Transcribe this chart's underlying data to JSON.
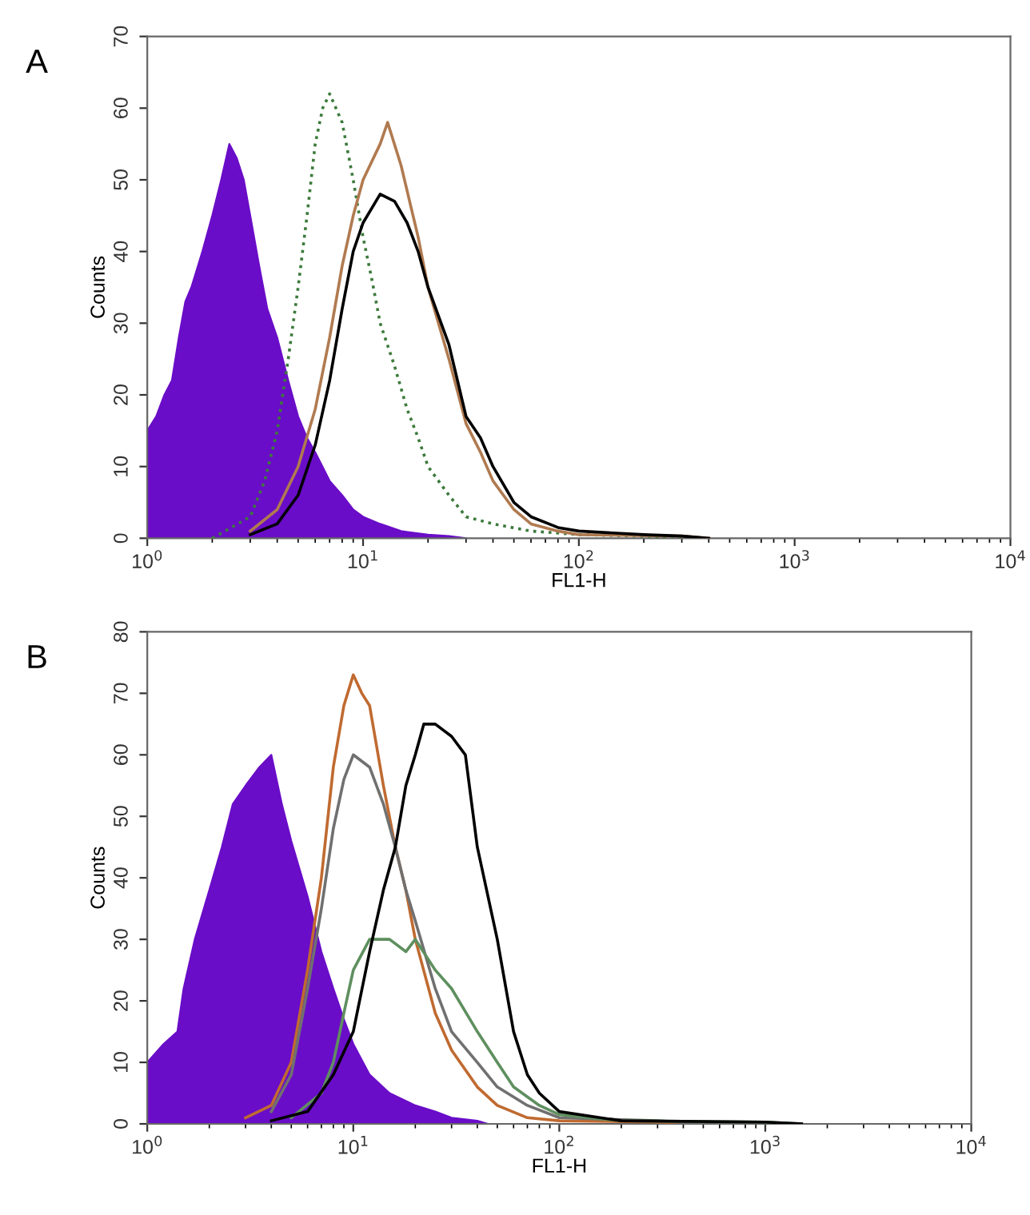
{
  "chart_data": [
    {
      "type": "line",
      "title": "A",
      "xlabel": "FL1-H",
      "ylabel": "Counts",
      "log": "x",
      "xlim": [
        1,
        10000
      ],
      "ylim": [
        0,
        70
      ],
      "xticks": [
        {
          "value": 1,
          "label": "10$^{0}$"
        },
        {
          "value": 10,
          "label": "10$^{1}$"
        },
        {
          "value": 100,
          "label": "10$^{2}$"
        },
        {
          "value": 1000,
          "label": "10$^{3}$"
        },
        {
          "value": 10000,
          "label": "10$^{4}$"
        }
      ],
      "yticks": [
        0,
        10,
        20,
        30,
        40,
        50,
        60,
        70
      ],
      "grid": false,
      "legend": false,
      "series": [
        {
          "type": "area",
          "color": "#6a0dc8",
          "x": [
            1,
            1.1,
            1.2,
            1.3,
            1.4,
            1.5,
            1.6,
            1.8,
            2.0,
            2.2,
            2.4,
            2.6,
            2.8,
            3.0,
            3.3,
            3.6,
            4,
            4.5,
            5,
            5.5,
            6,
            7,
            8,
            9,
            10,
            12,
            15,
            20,
            25,
            30
          ],
          "values": [
            15,
            17,
            20,
            22,
            28,
            33,
            35,
            40,
            45,
            50,
            55,
            53,
            50,
            45,
            38,
            32,
            28,
            22,
            17,
            14,
            12,
            8,
            6,
            4,
            3,
            2,
            1,
            0.5,
            0.3,
            0
          ]
        },
        {
          "color": "#3c7a3c",
          "line_style": "dotted",
          "x": [
            2,
            3,
            3.5,
            4,
            4.5,
            5,
            5.5,
            6,
            6.5,
            7,
            8,
            9,
            10,
            11,
            12,
            14,
            16,
            18,
            20,
            25,
            30,
            40,
            60,
            100,
            200,
            300
          ],
          "values": [
            0,
            3,
            8,
            15,
            25,
            35,
            45,
            55,
            60,
            62,
            58,
            50,
            42,
            36,
            30,
            24,
            18,
            14,
            10,
            6,
            3,
            2,
            1,
            0.5,
            0.3,
            0
          ]
        },
        {
          "color": "#b07a50",
          "x": [
            3,
            4,
            5,
            6,
            7,
            8,
            9,
            10,
            12,
            13,
            15,
            18,
            20,
            25,
            30,
            35,
            40,
            50,
            60,
            80,
            100,
            300,
            400
          ],
          "values": [
            1,
            4,
            10,
            18,
            28,
            38,
            45,
            50,
            55,
            58,
            52,
            42,
            35,
            25,
            16,
            12,
            8,
            4,
            2,
            1,
            0.5,
            0.3,
            0
          ]
        },
        {
          "color": "#000000",
          "x": [
            3,
            4,
            5,
            6,
            7,
            8,
            9,
            10,
            12,
            14,
            16,
            18,
            20,
            25,
            30,
            35,
            40,
            50,
            60,
            80,
            100,
            200,
            300,
            400
          ],
          "values": [
            0.5,
            2,
            6,
            13,
            22,
            32,
            40,
            44,
            48,
            47,
            44,
            40,
            35,
            27,
            17,
            14,
            10,
            5,
            3,
            1.5,
            1,
            0.5,
            0.3,
            0
          ]
        }
      ]
    },
    {
      "type": "line",
      "title": "B",
      "xlabel": "FL1-H",
      "ylabel": "Counts",
      "log": "x",
      "xlim": [
        1,
        10000
      ],
      "ylim": [
        0,
        80
      ],
      "xticks": [
        {
          "value": 1,
          "label": "10$^{0}$"
        },
        {
          "value": 10,
          "label": "10$^{1}$"
        },
        {
          "value": 100,
          "label": "10$^{2}$"
        },
        {
          "value": 1000,
          "label": "10$^{3}$"
        },
        {
          "value": 10000,
          "label": "10$^{4}$"
        }
      ],
      "yticks": [
        0,
        10,
        20,
        30,
        40,
        50,
        60,
        70,
        80
      ],
      "grid": false,
      "legend": false,
      "series": [
        {
          "type": "area",
          "color": "#6a0dc8",
          "x": [
            1,
            1.2,
            1.4,
            1.5,
            1.7,
            2,
            2.3,
            2.6,
            3,
            3.5,
            4,
            4.5,
            5,
            6,
            7,
            8,
            9,
            10,
            12,
            15,
            20,
            25,
            30,
            40,
            45
          ],
          "values": [
            10,
            13,
            15,
            22,
            30,
            38,
            45,
            52,
            55,
            58,
            60,
            52,
            46,
            37,
            28,
            22,
            17,
            13,
            8,
            5,
            3,
            2,
            1,
            0.5,
            0
          ]
        },
        {
          "color": "#c06a30",
          "x": [
            3,
            4,
            5,
            6,
            7,
            8,
            9,
            10,
            11,
            12,
            14,
            16,
            18,
            20,
            25,
            30,
            40,
            50,
            70,
            100,
            300,
            500
          ],
          "values": [
            1,
            3,
            10,
            25,
            40,
            58,
            68,
            73,
            70,
            68,
            55,
            45,
            38,
            30,
            18,
            12,
            6,
            3,
            1,
            0.5,
            0.3,
            0
          ]
        },
        {
          "color": "#707070",
          "x": [
            4,
            5,
            6,
            7,
            8,
            9,
            10,
            12,
            14,
            16,
            18,
            20,
            25,
            30,
            40,
            50,
            70,
            100,
            300,
            500
          ],
          "values": [
            2,
            8,
            22,
            35,
            48,
            56,
            60,
            58,
            52,
            45,
            38,
            33,
            22,
            15,
            10,
            6,
            3,
            1,
            0.5,
            0
          ]
        },
        {
          "color": "#5f8f5f",
          "x": [
            5,
            7,
            8,
            9,
            10,
            12,
            15,
            18,
            20,
            25,
            30,
            40,
            50,
            60,
            80,
            100,
            200,
            1000,
            1500
          ],
          "values": [
            1,
            5,
            10,
            18,
            25,
            30,
            30,
            28,
            30,
            25,
            22,
            15,
            10,
            6,
            3,
            1.5,
            0.5,
            0.3,
            0
          ]
        },
        {
          "color": "#000000",
          "x": [
            4,
            6,
            8,
            10,
            12,
            14,
            16,
            18,
            20,
            22,
            25,
            30,
            35,
            40,
            50,
            60,
            70,
            80,
            100,
            200,
            1000,
            1500
          ],
          "values": [
            0.5,
            2,
            8,
            15,
            28,
            38,
            45,
            55,
            60,
            65,
            65,
            63,
            60,
            45,
            30,
            15,
            8,
            5,
            2,
            0.5,
            0.3,
            0
          ]
        }
      ]
    }
  ]
}
